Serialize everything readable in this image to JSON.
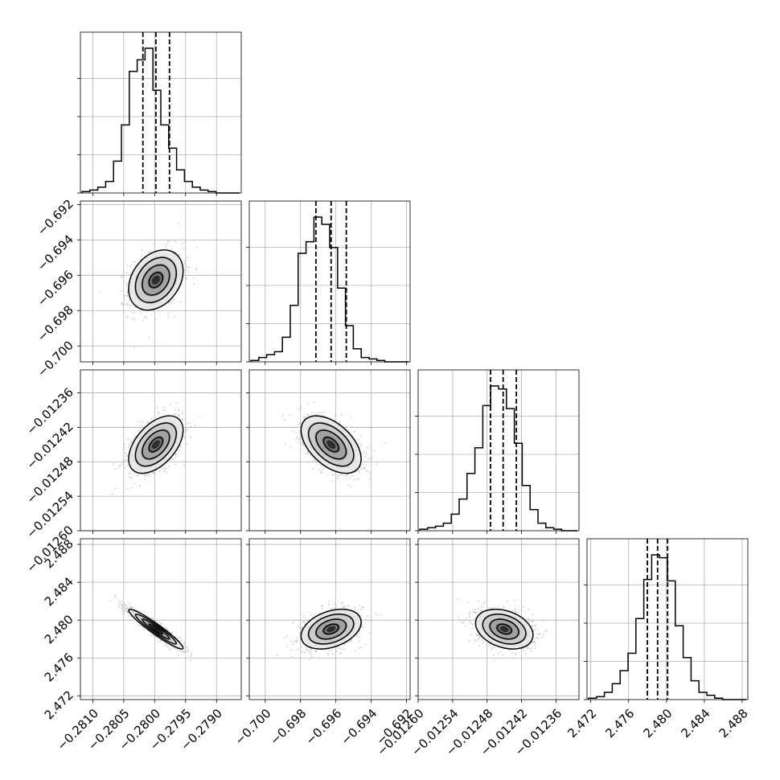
{
  "chart_data": {
    "type": "corner",
    "grid": true,
    "params": [
      {
        "range": [
          -0.2812,
          -0.2786
        ],
        "ticks": [
          -0.281,
          -0.2805,
          -0.28,
          -0.2795,
          -0.279
        ],
        "tick_labels": [
          "−0.2810",
          "−0.2805",
          "−0.2800",
          "−0.2795",
          "−0.2790"
        ],
        "mean": -0.27998,
        "std": 0.00022,
        "quantiles": [
          -0.28019,
          -0.27998,
          -0.27976
        ],
        "hist": [
          0.01,
          0.02,
          0.04,
          0.08,
          0.22,
          0.47,
          0.84,
          0.92,
          1.0,
          0.71,
          0.47,
          0.31,
          0.16,
          0.08,
          0.04,
          0.02,
          0.01,
          0.0,
          0.0,
          0.0
        ]
      },
      {
        "range": [
          -0.7009,
          -0.6918
        ],
        "ticks": [
          -0.7,
          -0.698,
          -0.696,
          -0.694,
          -0.692
        ],
        "tick_labels": [
          "−0.700",
          "−0.698",
          "−0.696",
          "−0.694",
          "−0.692"
        ],
        "mean": -0.69627,
        "std": 0.00085,
        "quantiles": [
          -0.69713,
          -0.69627,
          -0.69541
        ],
        "hist": [
          0.01,
          0.03,
          0.05,
          0.07,
          0.17,
          0.39,
          0.75,
          0.83,
          1.0,
          0.95,
          0.79,
          0.51,
          0.25,
          0.09,
          0.03,
          0.02,
          0.01,
          0.0,
          0.0,
          0.0
        ]
      },
      {
        "range": [
          -0.0126,
          -0.01232
        ],
        "ticks": [
          -0.0126,
          -0.01254,
          -0.01248,
          -0.01242,
          -0.01236
        ],
        "tick_labels": [
          "−0.01260",
          "−0.01254",
          "−0.01248",
          "−0.01242",
          "−0.01236"
        ],
        "mean": -0.01245,
        "std": 2.5e-05,
        "quantiles": [
          -0.012474,
          -0.012452,
          -0.012429
        ],
        "hist": [
          0.01,
          0.02,
          0.03,
          0.05,
          0.11,
          0.21,
          0.38,
          0.55,
          0.83,
          0.96,
          0.94,
          0.81,
          0.58,
          0.3,
          0.14,
          0.05,
          0.02,
          0.01,
          0.0,
          0.0
        ]
      },
      {
        "range": [
          2.4716,
          2.4886
        ],
        "ticks": [
          2.472,
          2.476,
          2.48,
          2.484,
          2.488
        ],
        "tick_labels": [
          "2.472",
          "2.476",
          "2.480",
          "2.484",
          "2.488"
        ],
        "mean": 2.47905,
        "std": 0.00105,
        "quantiles": [
          2.47798,
          2.47906,
          2.48012
        ],
        "hist": [
          0.01,
          0.02,
          0.05,
          0.11,
          0.2,
          0.32,
          0.56,
          0.83,
          1.0,
          0.98,
          0.82,
          0.51,
          0.29,
          0.13,
          0.05,
          0.03,
          0.01,
          0.0,
          0.0,
          0.0
        ]
      }
    ],
    "correlations": {
      "1-0": 0.3,
      "2-0": 0.5,
      "2-1": -0.5,
      "3-0": -0.95,
      "3-1": 0.35,
      "3-2": -0.3
    }
  }
}
